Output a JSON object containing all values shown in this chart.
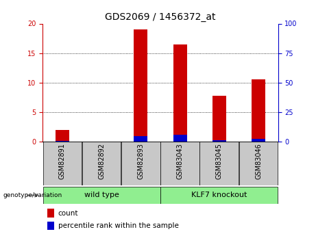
{
  "title": "GDS2069 / 1456372_at",
  "samples": [
    "GSM82891",
    "GSM82892",
    "GSM82893",
    "GSM83043",
    "GSM83045",
    "GSM83046"
  ],
  "count_values": [
    2.0,
    0.0,
    19.0,
    16.5,
    7.8,
    10.5
  ],
  "percentile_values": [
    0.5,
    0.0,
    4.5,
    5.6,
    1.1,
    2.2
  ],
  "groups": [
    {
      "label": "wild type",
      "color": "#90EE90",
      "span": [
        0,
        2
      ]
    },
    {
      "label": "KLF7 knockout",
      "color": "#90EE90",
      "span": [
        3,
        5
      ]
    }
  ],
  "ylim_left": [
    0,
    20
  ],
  "ylim_right": [
    0,
    100
  ],
  "yticks_left": [
    0,
    5,
    10,
    15,
    20
  ],
  "yticks_right": [
    0,
    25,
    50,
    75,
    100
  ],
  "bar_color_count": "#CC0000",
  "bar_color_pct": "#0000CC",
  "bar_width": 0.35,
  "tick_label_fontsize": 7,
  "title_fontsize": 10,
  "legend_fontsize": 7.5,
  "label_color_left": "#CC0000",
  "label_color_right": "#0000CC",
  "background_xlabel": "#C8C8C8",
  "background_group": "#90EE90",
  "genotype_label": "genotype/variation"
}
